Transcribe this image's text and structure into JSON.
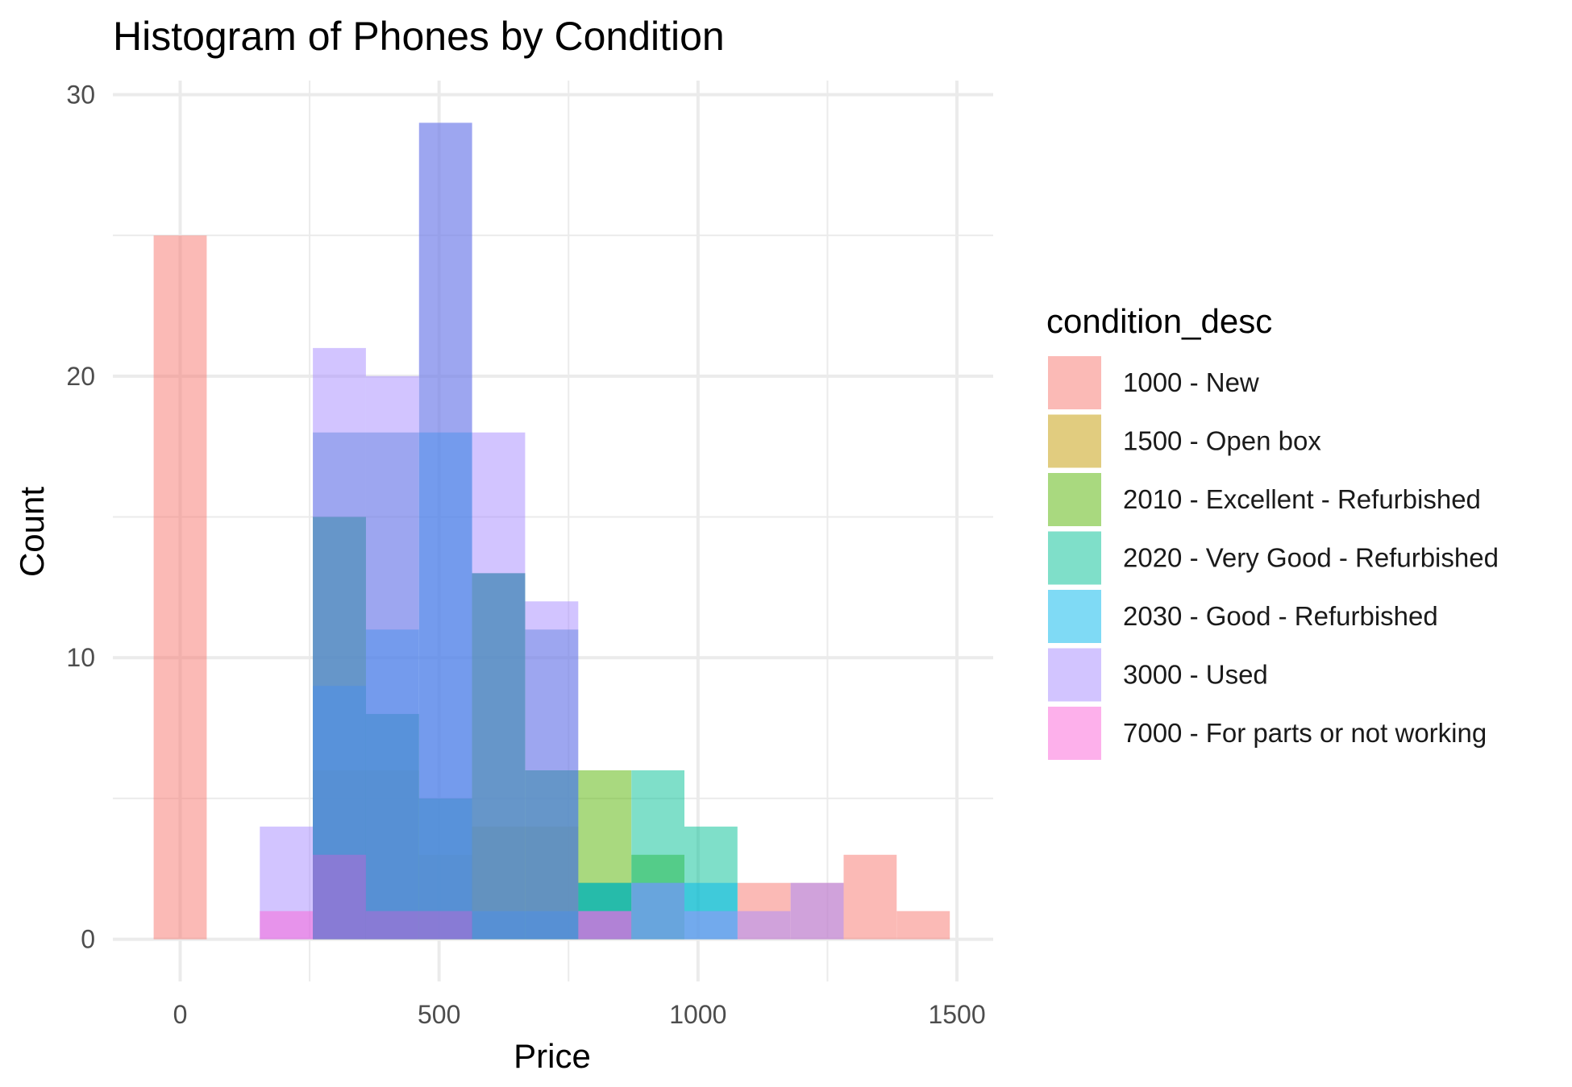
{
  "chart_data": {
    "type": "bar",
    "subtype": "histogram-overlaid",
    "title": "Histogram of Phones by Condition",
    "xlabel": "Price",
    "ylabel": "Count",
    "xlim": [
      -130,
      1570
    ],
    "ylim": [
      -1.5,
      30.5
    ],
    "x_ticks": [
      0,
      500,
      1000,
      1500
    ],
    "x_tick_labels": [
      "0",
      "500",
      "1000",
      "1500"
    ],
    "y_ticks": [
      0,
      10,
      20,
      30
    ],
    "y_tick_labels": [
      "0",
      "10",
      "20",
      "30"
    ],
    "grid": true,
    "legend_title": "condition_desc",
    "legend_position": "right",
    "bin_width": 102.5,
    "series": [
      {
        "name": "1000 - New",
        "color": "#F8766D",
        "bins": [
          {
            "center": 0,
            "count": 25
          },
          {
            "center": 1127.5,
            "count": 2
          },
          {
            "center": 1230,
            "count": 2
          },
          {
            "center": 1332.5,
            "count": 3
          },
          {
            "center": 1435,
            "count": 1
          }
        ]
      },
      {
        "name": "1500 - Open box",
        "color": "#C49A00",
        "bins": [
          {
            "center": 307.5,
            "count": 6
          },
          {
            "center": 410,
            "count": 6
          },
          {
            "center": 512.5,
            "count": 3
          },
          {
            "center": 615,
            "count": 4
          },
          {
            "center": 717.5,
            "count": 4
          },
          {
            "center": 820,
            "count": 2
          }
        ]
      },
      {
        "name": "2010 - Excellent - Refurbished",
        "color": "#53B400",
        "bins": [
          {
            "center": 307.5,
            "count": 15
          },
          {
            "center": 410,
            "count": 8
          },
          {
            "center": 512.5,
            "count": 5
          },
          {
            "center": 615,
            "count": 13
          },
          {
            "center": 717.5,
            "count": 6
          },
          {
            "center": 820,
            "count": 6
          },
          {
            "center": 922.5,
            "count": 3
          }
        ]
      },
      {
        "name": "2020 - Very Good - Refurbished",
        "color": "#00C094",
        "bins": [
          {
            "center": 307.5,
            "count": 15
          },
          {
            "center": 410,
            "count": 8
          },
          {
            "center": 512.5,
            "count": 5
          },
          {
            "center": 615,
            "count": 13
          },
          {
            "center": 717.5,
            "count": 6
          },
          {
            "center": 820,
            "count": 2
          },
          {
            "center": 922.5,
            "count": 6
          },
          {
            "center": 1025,
            "count": 4
          }
        ]
      },
      {
        "name": "2030 - Good - Refurbished",
        "color": "#00B6EB",
        "bins": [
          {
            "center": 307.5,
            "count": 9
          },
          {
            "center": 410,
            "count": 11
          },
          {
            "center": 512.5,
            "count": 18
          },
          {
            "center": 615,
            "count": 1
          },
          {
            "center": 717.5,
            "count": 1
          },
          {
            "center": 820,
            "count": 2
          },
          {
            "center": 922.5,
            "count": 2
          },
          {
            "center": 1025,
            "count": 2
          }
        ]
      },
      {
        "name": "3000 - Used",
        "color": "#A58AFF",
        "bins": [
          {
            "center": 205,
            "count": 4
          },
          {
            "center": 307.5,
            "count": 21
          },
          {
            "center": 410,
            "count": 20
          },
          {
            "center": 512.5,
            "count": 29
          },
          {
            "center": 615,
            "count": 18
          },
          {
            "center": 717.5,
            "count": 12
          },
          {
            "center": 820,
            "count": 1
          },
          {
            "center": 922.5,
            "count": 2
          },
          {
            "center": 1025,
            "count": 1
          },
          {
            "center": 1127.5,
            "count": 1
          },
          {
            "center": 1230,
            "count": 2
          }
        ]
      },
      {
        "name": "7000 - For parts or not working",
        "color": "#FB61D7",
        "bins": [
          {
            "center": 205,
            "count": 1
          },
          {
            "center": 307.5,
            "count": 3
          },
          {
            "center": 410,
            "count": 1
          },
          {
            "center": 512.5,
            "count": 1
          },
          {
            "center": 820,
            "count": 1
          }
        ]
      }
    ],
    "extra_layers": [
      {
        "series": "3000 - Used",
        "color": "#3B6FD4",
        "bins": [
          {
            "center": 307.5,
            "count": 18
          },
          {
            "center": 410,
            "count": 18
          },
          {
            "center": 512.5,
            "count": 29
          },
          {
            "center": 615,
            "count": 13
          },
          {
            "center": 717.5,
            "count": 11
          }
        ]
      }
    ]
  }
}
